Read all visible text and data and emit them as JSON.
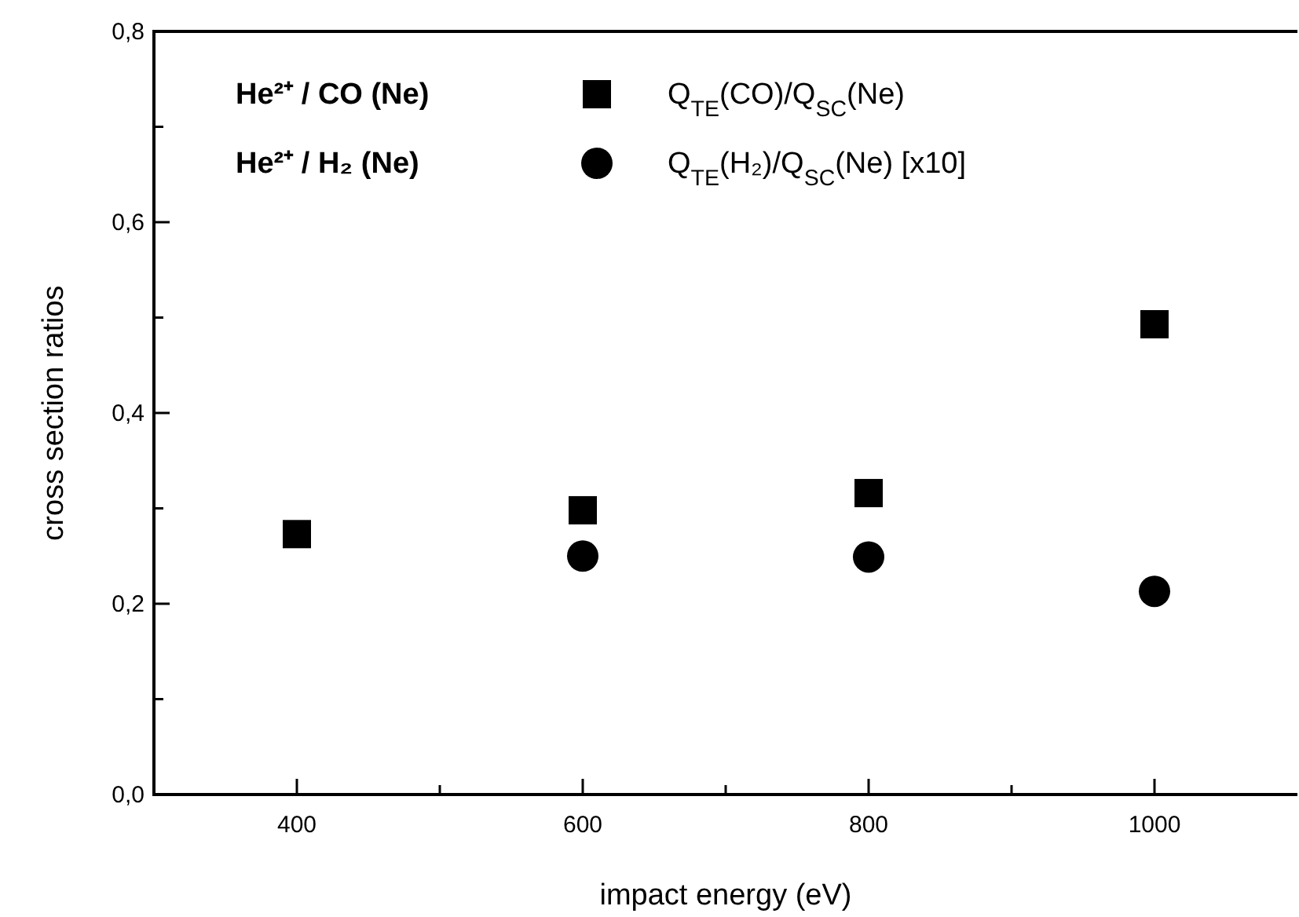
{
  "chart_data": {
    "type": "scatter",
    "xlabel": "impact energy (eV)",
    "ylabel": "cross section ratios",
    "xlim": [
      300,
      1100
    ],
    "xticks": [
      400,
      {
        "value": 500,
        "label": null
      },
      600,
      {
        "value": 700,
        "label": null
      },
      800,
      {
        "value": 900,
        "label": null
      },
      1000
    ],
    "ylim": [
      0,
      0.8
    ],
    "yticks": [
      {
        "value": 0,
        "label": "0,0"
      },
      {
        "value": 0.1,
        "label": null
      },
      {
        "value": 0.2,
        "label": "0,2"
      },
      {
        "value": 0.3,
        "label": null
      },
      {
        "value": 0.4,
        "label": "0,4"
      },
      {
        "value": 0.5,
        "label": null
      },
      {
        "value": 0.6,
        "label": "0,6"
      },
      {
        "value": 0.7,
        "label": null
      },
      {
        "value": 0.8,
        "label": "0,8"
      }
    ],
    "grid": false,
    "legend": "top",
    "annotations": [
      "He²⁺ / CO (Ne)",
      "He²⁺ /  H₂ (Ne)"
    ],
    "series": [
      {
        "name": "Q$_{TE}$(CO)/Q$_{SC}$(Ne)",
        "color": "#000000",
        "marker": "square",
        "x": [
          400,
          600,
          800,
          1000
        ],
        "values": [
          0.273,
          0.298,
          0.316,
          0.493
        ]
      },
      {
        "name": "Q$_{TE}$(H₂)/Q$_{SC}$(Ne) [x10]",
        "color": "#000000",
        "marker": "circle",
        "x": [
          600,
          800,
          1000
        ],
        "values": [
          0.25,
          0.249,
          0.213
        ]
      }
    ]
  }
}
